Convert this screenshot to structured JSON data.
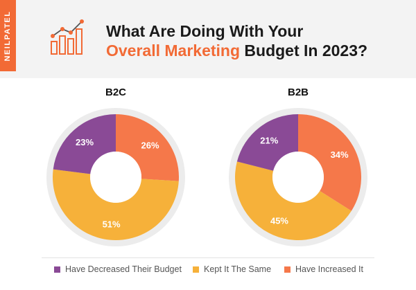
{
  "header": {
    "brand": "NEILPATEL",
    "title_line1": "What Are Doing With Your",
    "title_line2_accent": "Overall Marketing",
    "title_line2_rest": " Budget In 2023?",
    "logo_icon": "bar-chart-trend-icon"
  },
  "colors": {
    "decreased": "#8a4a96",
    "same": "#f6b13a",
    "increased": "#f5784a",
    "accent": "#f26a35"
  },
  "legend": [
    {
      "label": "Have Decreased Their Budget",
      "color": "#8a4a96"
    },
    {
      "label": "Kept It The Same",
      "color": "#f6b13a"
    },
    {
      "label": "Have Increased It",
      "color": "#f5784a"
    }
  ],
  "chart_data": [
    {
      "type": "pie",
      "title": "B2C",
      "categories": [
        "Have Increased It",
        "Kept It The Same",
        "Have Decreased Their Budget"
      ],
      "values": [
        26,
        51,
        23
      ],
      "labels": [
        "26%",
        "51%",
        "23%"
      ]
    },
    {
      "type": "pie",
      "title": "B2B",
      "categories": [
        "Have Increased It",
        "Kept It The Same",
        "Have Decreased Their Budget"
      ],
      "values": [
        34,
        45,
        21
      ],
      "labels": [
        "34%",
        "45%",
        "21%"
      ]
    }
  ]
}
